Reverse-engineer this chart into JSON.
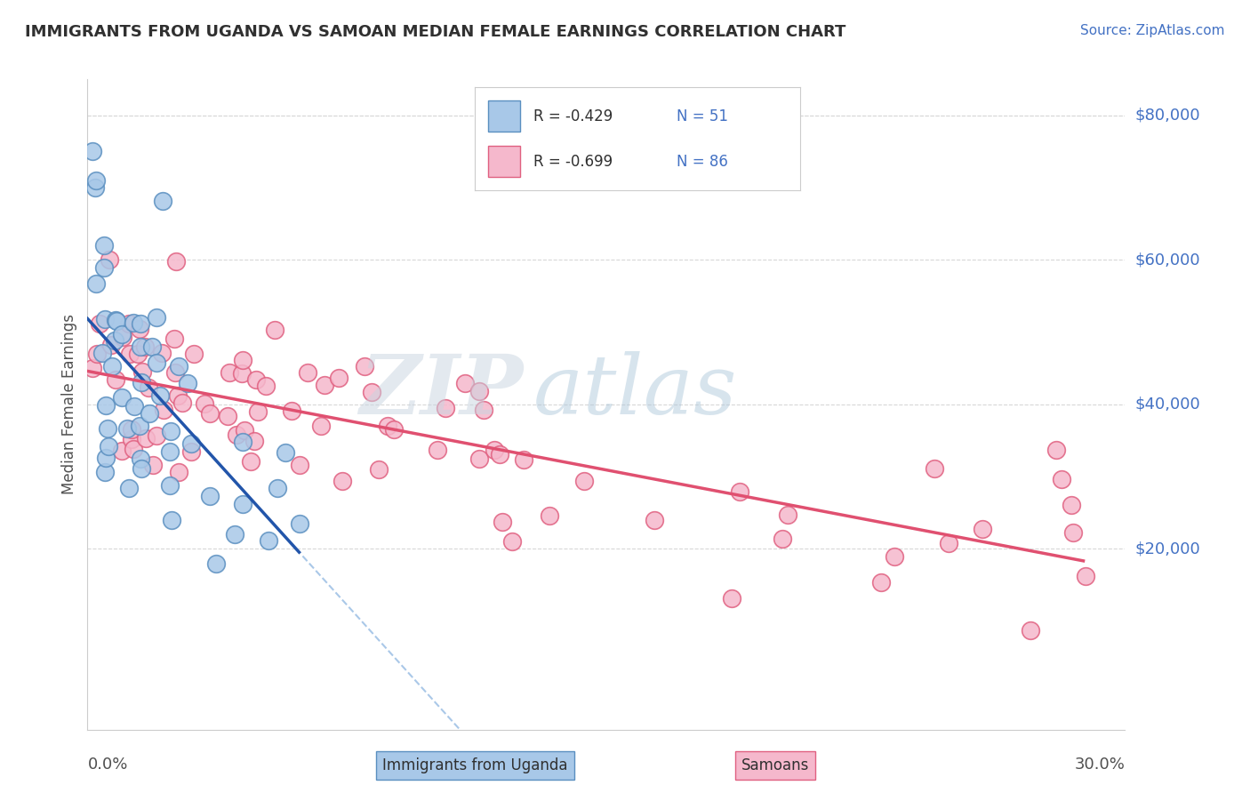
{
  "title": "IMMIGRANTS FROM UGANDA VS SAMOAN MEDIAN FEMALE EARNINGS CORRELATION CHART",
  "source": "Source: ZipAtlas.com",
  "ylabel": "Median Female Earnings",
  "legend_blue_r": "-0.429",
  "legend_blue_n": "51",
  "legend_pink_r": "-0.699",
  "legend_pink_n": "86",
  "xmin": 0.0,
  "xmax": 0.3,
  "ymin": -5000,
  "ymax": 85000,
  "blue_scatter_color": "#a8c8e8",
  "blue_edge_color": "#5a8fc0",
  "blue_line_color": "#2255aa",
  "pink_scatter_color": "#f5b8cc",
  "pink_edge_color": "#e06080",
  "pink_line_color": "#e05070",
  "dashed_line_color": "#aac8e8",
  "watermark_zip_color": "#d0d8e8",
  "watermark_atlas_color": "#b8cce0",
  "background_color": "#ffffff",
  "grid_color": "#d8d8d8",
  "title_color": "#303030",
  "source_color": "#4472C4",
  "right_label_color": "#4472C4"
}
